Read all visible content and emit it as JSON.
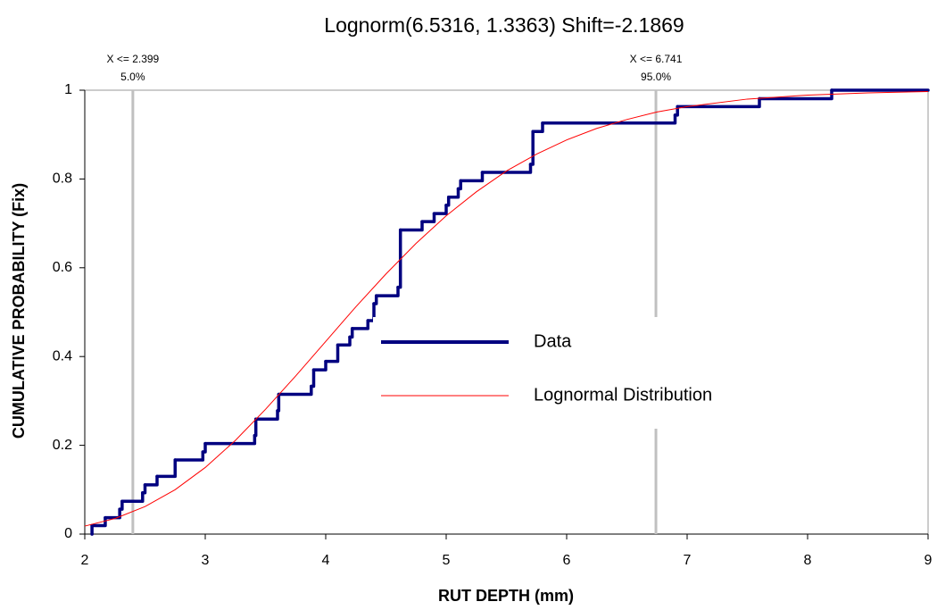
{
  "chart_data": {
    "type": "step-cdf",
    "title": "Lognorm(6.5316, 1.3363) Shift=-2.1869",
    "x_label": "RUT DEPTH (mm)",
    "y_label": "CUMULATIVE PROBABILITY (Fix)",
    "xlim": [
      2,
      9
    ],
    "ylim": [
      0,
      1
    ],
    "xticks": [
      2,
      3,
      4,
      5,
      6,
      7,
      8,
      9
    ],
    "yticks": [
      0,
      0.2,
      0.4,
      0.6,
      0.8,
      1
    ],
    "series": [
      {
        "name": "Data",
        "color": "#000080",
        "style": "step",
        "x": [
          2.06,
          2.06,
          2.17,
          2.29,
          2.31,
          2.48,
          2.5,
          2.6,
          2.75,
          2.75,
          2.98,
          3.0,
          3.41,
          3.42,
          3.6,
          3.61,
          3.88,
          3.9,
          4.0,
          4.1,
          4.2,
          4.22,
          4.35,
          4.4,
          4.42,
          4.6,
          4.62,
          4.8,
          4.9,
          5.0,
          5.02,
          5.1,
          5.12,
          5.3,
          5.7,
          5.72,
          5.8,
          6.9,
          6.92,
          7.6,
          8.2,
          9.0
        ],
        "values": [
          0,
          0.019,
          0.037,
          0.056,
          0.074,
          0.093,
          0.111,
          0.13,
          0.148,
          0.167,
          0.185,
          0.204,
          0.222,
          0.259,
          0.278,
          0.315,
          0.333,
          0.37,
          0.389,
          0.426,
          0.444,
          0.463,
          0.481,
          0.519,
          0.537,
          0.556,
          0.685,
          0.704,
          0.722,
          0.741,
          0.759,
          0.778,
          0.796,
          0.815,
          0.833,
          0.907,
          0.926,
          0.944,
          0.963,
          0.981,
          1.0,
          1.0
        ]
      },
      {
        "name": "Lognormal Distribution",
        "color": "#ff0000",
        "style": "line",
        "x": [
          2,
          2.25,
          2.5,
          2.75,
          3,
          3.25,
          3.5,
          3.75,
          4,
          4.25,
          4.5,
          4.75,
          5,
          5.25,
          5.5,
          5.75,
          6,
          6.25,
          6.5,
          6.75,
          7,
          7.5,
          8,
          8.5,
          9
        ],
        "values": [
          0.018,
          0.035,
          0.062,
          0.1,
          0.15,
          0.211,
          0.281,
          0.356,
          0.434,
          0.512,
          0.586,
          0.655,
          0.717,
          0.771,
          0.818,
          0.856,
          0.888,
          0.914,
          0.934,
          0.951,
          0.963,
          0.98,
          0.989,
          0.994,
          0.997
        ]
      }
    ],
    "reference_lines": [
      {
        "x": 2.399,
        "label": "X <= 2.399",
        "probability": "5.0%"
      },
      {
        "x": 6.741,
        "label": "X <= 6.741",
        "probability": "95.0%"
      }
    ]
  }
}
